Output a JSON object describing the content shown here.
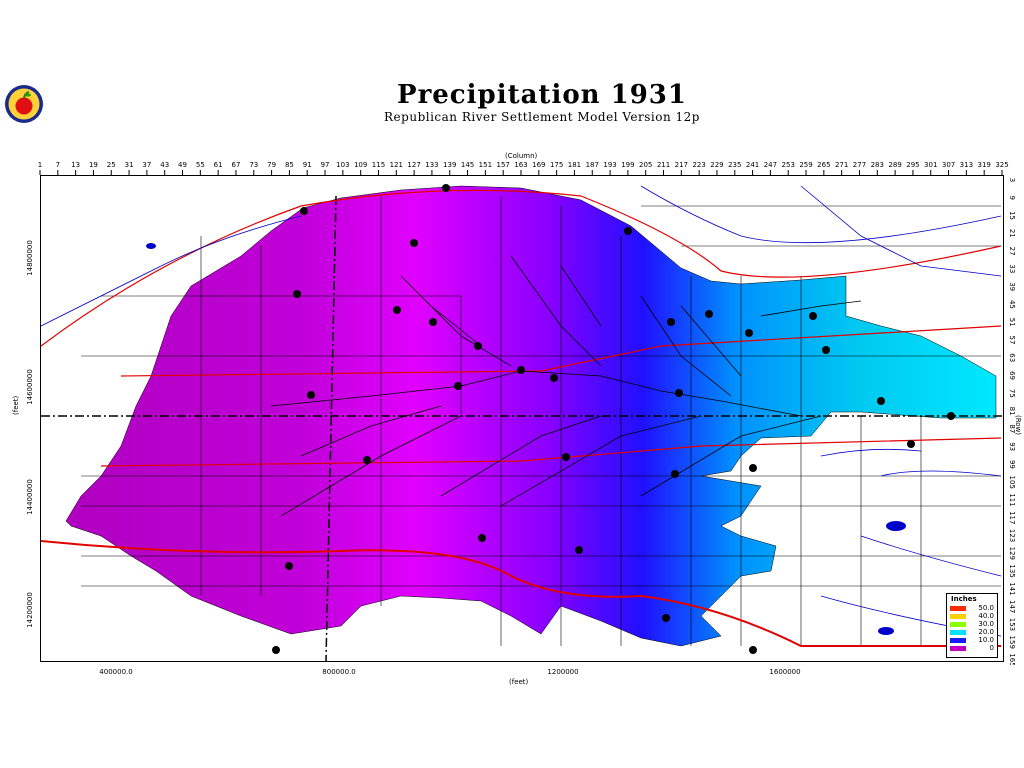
{
  "header": {
    "title": "Precipitation 1931",
    "subtitle": "Republican River Settlement Model Version 12p"
  },
  "axes": {
    "column_title": "(Column)",
    "row_title": "(Row)",
    "x_feet_title": "(feet)",
    "y_feet_title": "(feet)",
    "column_ticks": [
      "1",
      "7",
      "13",
      "19",
      "25",
      "31",
      "37",
      "43",
      "49",
      "55",
      "61",
      "67",
      "73",
      "79",
      "85",
      "91",
      "97",
      "103",
      "109",
      "115",
      "121",
      "127",
      "133",
      "139",
      "145",
      "151",
      "157",
      "163",
      "169",
      "175",
      "181",
      "187",
      "193",
      "199",
      "205",
      "211",
      "217",
      "223",
      "229",
      "235",
      "241",
      "247",
      "253",
      "259",
      "265",
      "271",
      "277",
      "283",
      "289",
      "295",
      "301",
      "307",
      "313",
      "319",
      "325"
    ],
    "row_ticks": [
      "3",
      "9",
      "15",
      "21",
      "27",
      "33",
      "39",
      "45",
      "51",
      "57",
      "63",
      "69",
      "75",
      "81",
      "87",
      "93",
      "99",
      "105",
      "111",
      "117",
      "123",
      "129",
      "135",
      "141",
      "147",
      "153",
      "159",
      "165"
    ],
    "x_feet_ticks": [
      "400000.0",
      "800000.0",
      "1200000",
      "1600000"
    ],
    "y_feet_ticks": [
      "14800000",
      "14600000",
      "14400000",
      "14200000"
    ]
  },
  "legend": {
    "title": "Inches",
    "entries": [
      {
        "label": "50.0",
        "color": "#ff2a00"
      },
      {
        "label": "40.0",
        "color": "#ffd000"
      },
      {
        "label": "30.0",
        "color": "#8cff00"
      },
      {
        "label": "20.0",
        "color": "#00e0ff"
      },
      {
        "label": "10.0",
        "color": "#1a1aff"
      },
      {
        "label": "0",
        "color": "#c000c0"
      }
    ]
  },
  "colors": {
    "river_network": "#0000cc",
    "roads": "#e00000",
    "grid": "#000000",
    "stations": "#000000"
  }
}
